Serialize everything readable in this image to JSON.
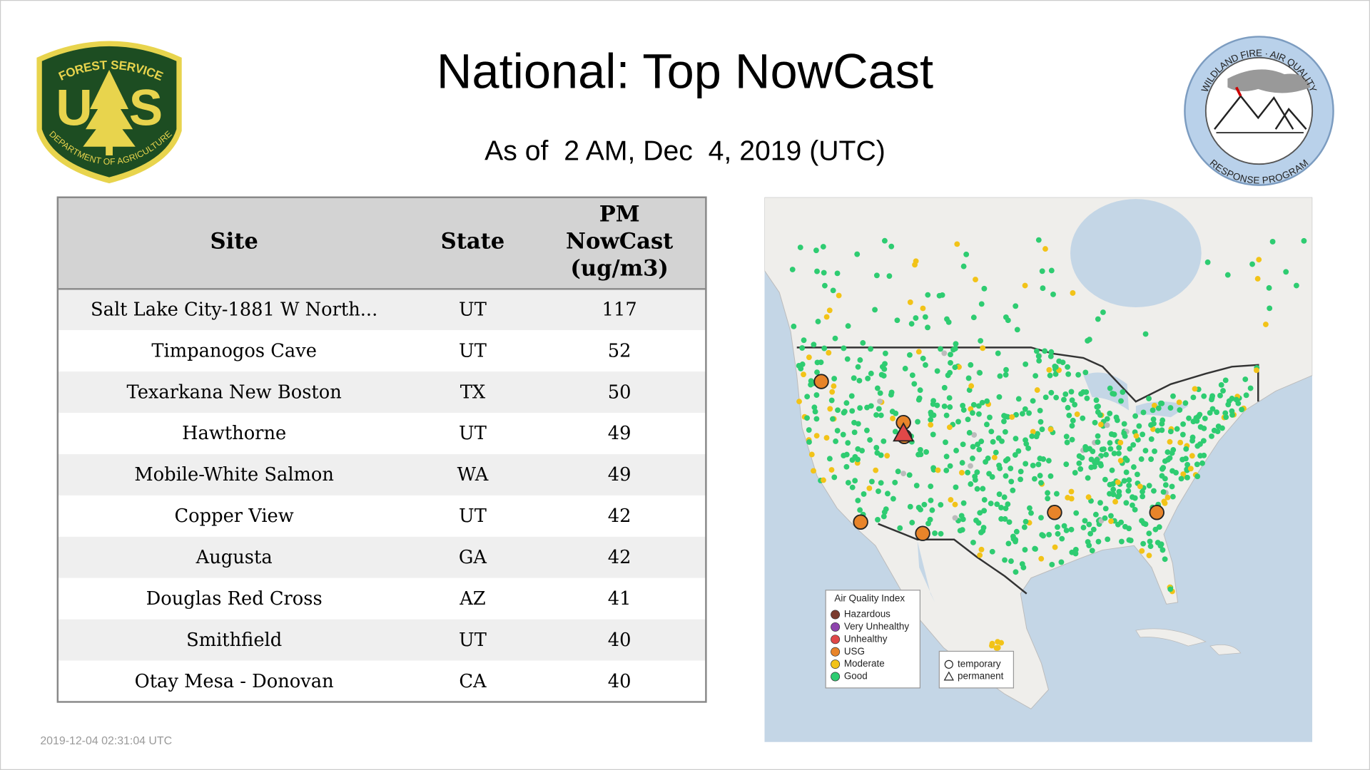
{
  "header": {
    "title": "National: Top NowCast",
    "subtitle": "As of  2 AM, Dec  4, 2019 (UTC)"
  },
  "logos": {
    "forest_service": {
      "top": "FOREST SERVICE",
      "letters": [
        "U",
        "S"
      ],
      "bottom": "DEPARTMENT OF AGRICULTURE"
    },
    "program": {
      "top": "WILDLAND FIRE · AIR QUALITY",
      "bottom": "RESPONSE PROGRAM"
    }
  },
  "table": {
    "columns": [
      "Site",
      "State",
      [
        "PM",
        "NowCast",
        "(ug/m3)"
      ]
    ],
    "rows": [
      [
        "Salt Lake City-1881 W North...",
        "UT",
        117
      ],
      [
        "Timpanogos Cave",
        "UT",
        52
      ],
      [
        "Texarkana New Boston",
        "TX",
        50
      ],
      [
        "Hawthorne",
        "UT",
        49
      ],
      [
        "Mobile-White Salmon",
        "WA",
        49
      ],
      [
        "Copper View",
        "UT",
        42
      ],
      [
        "Augusta",
        "GA",
        42
      ],
      [
        "Douglas Red Cross",
        "AZ",
        41
      ],
      [
        "Smithfield",
        "UT",
        40
      ],
      [
        "Otay Mesa - Donovan",
        "CA",
        40
      ]
    ]
  },
  "map": {
    "legend": {
      "title": "Air Quality Index",
      "items": [
        "Hazardous",
        "Very Unhealthy",
        "Unhealthy",
        "USG",
        "Moderate",
        "Good"
      ]
    },
    "marker_legend": [
      "temporary",
      "permanent"
    ]
  },
  "footer": {
    "timestamp": "2019-12-04 02:31:04 UTC"
  }
}
